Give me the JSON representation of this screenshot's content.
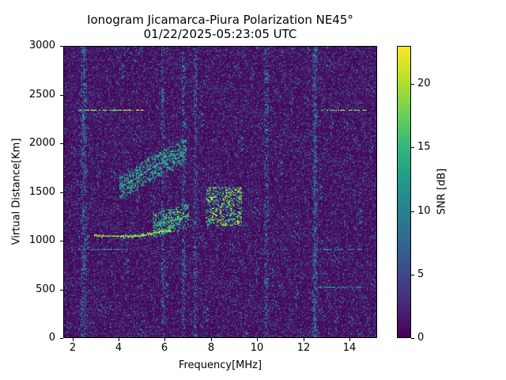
{
  "chart_data": {
    "type": "heatmap",
    "title": "Ionogram Jicamarca-Piura Polarization NE45°",
    "subtitle": "01/22/2025-05:23:05 UTC",
    "xlabel": "Frequency[MHz]",
    "ylabel": "Virtual Distance[Km]",
    "colorbar_label": "SNR [dB]",
    "colormap": "viridis",
    "xlim": [
      1.6,
      15.2
    ],
    "ylim": [
      0,
      3000
    ],
    "clim": [
      0,
      23
    ],
    "x_ticks": [
      2,
      4,
      6,
      8,
      10,
      12,
      14
    ],
    "y_ticks": [
      0,
      500,
      1000,
      1500,
      2000,
      2500,
      3000
    ],
    "colorbar_ticks": [
      0,
      5,
      10,
      15,
      20
    ],
    "grid": false,
    "features": {
      "horizontal_lines": [
        {
          "y": 2350,
          "x_start": 2.2,
          "x_end": 5.0,
          "snr": 22,
          "note": "bright line"
        },
        {
          "y": 2350,
          "x_start": 12.8,
          "x_end": 14.8,
          "snr": 22,
          "note": "bright line"
        },
        {
          "y": 900,
          "x_start": 2.2,
          "x_end": 4.5,
          "snr": 12
        },
        {
          "y": 900,
          "x_start": 12.6,
          "x_end": 14.7,
          "snr": 14
        },
        {
          "y": 510,
          "x_start": 12.7,
          "x_end": 14.5,
          "snr": 14
        }
      ],
      "traces": [
        {
          "name": "1-hop F trace",
          "points": [
            [
              2.9,
              1050
            ],
            [
              3.5,
              1040
            ],
            [
              4.2,
              1035
            ],
            [
              5.0,
              1050
            ],
            [
              5.6,
              1080
            ],
            [
              6.2,
              1100
            ]
          ],
          "snr": 22
        },
        {
          "name": "2-hop F trace",
          "points": [
            [
              4.0,
              1550
            ],
            [
              4.8,
              1650
            ],
            [
              5.6,
              1780
            ],
            [
              6.3,
              1850
            ],
            [
              6.9,
              1950
            ]
          ],
          "snr": 16
        },
        {
          "name": "F spread echo",
          "points": [
            [
              5.5,
              1150
            ],
            [
              6.2,
              1200
            ],
            [
              7.0,
              1250
            ]
          ],
          "snr": 18
        },
        {
          "name": "spread F cluster",
          "x_range": [
            7.8,
            9.3
          ],
          "y_range": [
            1150,
            1550
          ],
          "snr": 22
        }
      ],
      "vertical_interference_bands_mhz": [
        2.4,
        2.5,
        5.9,
        6.8,
        7.3,
        10.4,
        12.5,
        12.6
      ]
    },
    "x_range_labels": [
      "2",
      "4",
      "6",
      "8",
      "10",
      "12",
      "14"
    ],
    "y_range_labels": [
      "0",
      "500",
      "1000",
      "1500",
      "2000",
      "2500",
      "3000"
    ],
    "colorbar_labels": [
      "0",
      "5",
      "10",
      "15",
      "20"
    ],
    "render": {
      "cols": 260,
      "rows": 240,
      "seed": 12345
    }
  }
}
